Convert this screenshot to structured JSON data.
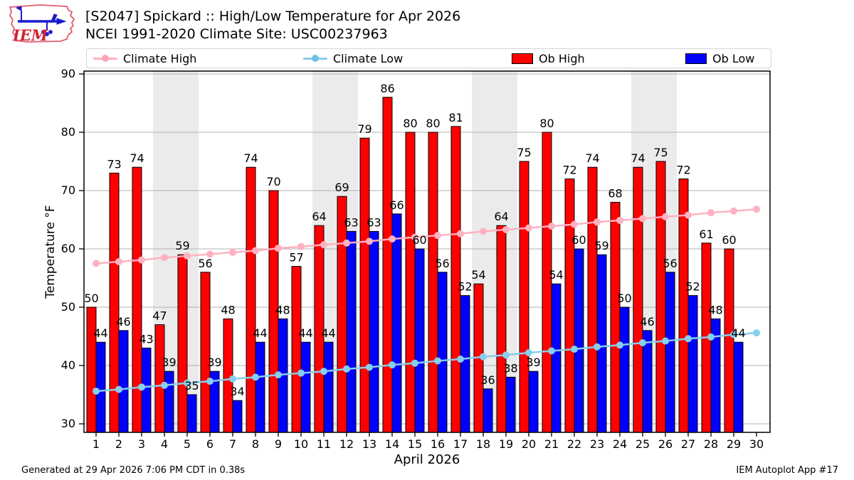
{
  "header": {
    "title_line1": "[S2047] Spickard :: High/Low Temperature for Apr 2026",
    "title_line2": "NCEI 1991-2020 Climate Site: USC00237963",
    "logo_text": "IEM"
  },
  "legend": {
    "climate_high": "Climate High",
    "climate_low": "Climate Low",
    "ob_high": "Ob High",
    "ob_low": "Ob Low"
  },
  "footer": {
    "generated": "Generated at 29 Apr 2026 7:06 PM CDT in 0.38s",
    "app": "IEM Autoplot App #17"
  },
  "colors": {
    "ob_high": "#ff0000",
    "ob_low": "#0000ff",
    "climate_high": "#ffb1c1",
    "climate_low": "#87ceeb",
    "weekend_band": "#ebebeb",
    "gridline": "#b0b0b0",
    "bar_edge": "#000000",
    "logo_red": "#d63a4e",
    "logo_blue": "#1a1acd"
  },
  "chart_data": {
    "type": "bar",
    "title": "[S2047] Spickard :: High/Low Temperature for Apr 2026",
    "subtitle": "NCEI 1991-2020 Climate Site: USC00237963",
    "xlabel": "April 2026",
    "ylabel": "Temperature °F",
    "ylim": [
      28.5,
      91
    ],
    "yticks": [
      30,
      40,
      50,
      60,
      70,
      80,
      90
    ],
    "grid": true,
    "legend_position": "top",
    "days": [
      1,
      2,
      3,
      4,
      5,
      6,
      7,
      8,
      9,
      10,
      11,
      12,
      13,
      14,
      15,
      16,
      17,
      18,
      19,
      20,
      21,
      22,
      23,
      24,
      25,
      26,
      27,
      28,
      29,
      30
    ],
    "weekend_days": [
      4,
      5,
      11,
      12,
      18,
      19,
      25,
      26
    ],
    "series": [
      {
        "name": "Ob High",
        "render": "bar",
        "values": [
          50,
          73,
          74,
          47,
          59,
          56,
          48,
          74,
          70,
          57,
          64,
          69,
          79,
          86,
          80,
          80,
          81,
          54,
          64,
          75,
          80,
          72,
          74,
          68,
          74,
          75,
          72,
          61,
          60,
          null
        ]
      },
      {
        "name": "Ob Low",
        "render": "bar",
        "values": [
          44,
          46,
          43,
          39,
          35,
          39,
          34,
          44,
          48,
          44,
          44,
          63,
          63,
          66,
          60,
          56,
          52,
          36,
          38,
          39,
          54,
          60,
          59,
          50,
          46,
          56,
          52,
          48,
          44,
          null
        ]
      },
      {
        "name": "Climate High",
        "render": "line",
        "values": [
          57.5,
          57.8,
          58.1,
          58.5,
          58.8,
          59.1,
          59.4,
          59.7,
          60.1,
          60.4,
          60.7,
          61.0,
          61.3,
          61.7,
          62.0,
          62.3,
          62.6,
          63.0,
          63.3,
          63.6,
          63.9,
          64.2,
          64.6,
          64.9,
          65.2,
          65.5,
          65.8,
          66.2,
          66.5,
          66.8
        ]
      },
      {
        "name": "Climate Low",
        "render": "line",
        "values": [
          35.6,
          35.9,
          36.3,
          36.6,
          37.0,
          37.3,
          37.7,
          38.0,
          38.4,
          38.7,
          39.0,
          39.4,
          39.7,
          40.1,
          40.4,
          40.8,
          41.1,
          41.5,
          41.8,
          42.2,
          42.5,
          42.8,
          43.2,
          43.5,
          43.9,
          44.2,
          44.6,
          44.9,
          45.3,
          45.6
        ]
      }
    ]
  }
}
